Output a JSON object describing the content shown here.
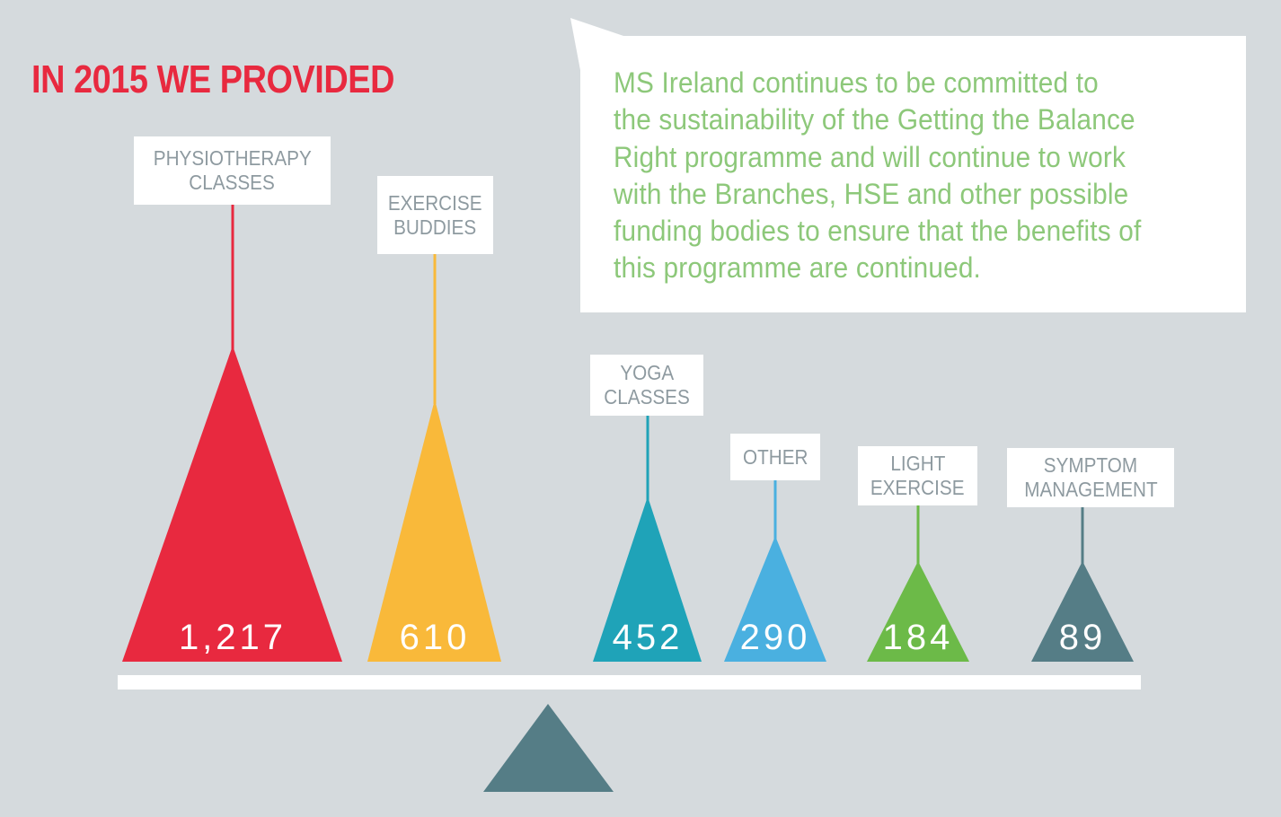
{
  "title": "IN 2015 WE PROVIDED",
  "statement": {
    "lines": [
      "MS Ireland continues to be committed to",
      "the sustainability of the Getting the Balance",
      "Right programme and will continue to work",
      "with the Branches, HSE and other possible",
      "funding bodies to ensure that the benefits of",
      "this programme are continued."
    ]
  },
  "chart_data": {
    "type": "bar",
    "title": "IN 2015 WE PROVIDED",
    "categories": [
      "PHYSIOTHERAPY CLASSES",
      "EXERCISE BUDDIES",
      "YOGA CLASSES",
      "OTHER",
      "LIGHT EXERCISE",
      "SYMPTOM MANAGEMENT"
    ],
    "label_lines": [
      [
        "PHYSIOTHERAPY",
        "CLASSES"
      ],
      [
        "EXERCISE",
        "BUDDIES"
      ],
      [
        "YOGA",
        "CLASSES"
      ],
      [
        "OTHER"
      ],
      [
        "LIGHT",
        "EXERCISE"
      ],
      [
        "SYMPTOM",
        "MANAGEMENT"
      ]
    ],
    "values": [
      1217,
      610,
      452,
      290,
      184,
      89
    ],
    "value_labels": [
      "1,217",
      "610",
      "452",
      "290",
      "184",
      "89"
    ],
    "colors": [
      "#e8293f",
      "#f9b93a",
      "#1fa3b8",
      "#4ab0e0",
      "#6cba48",
      "#557d86"
    ],
    "xlabel": "",
    "ylabel": ""
  },
  "colors": {
    "background": "#d5dadd",
    "title": "#e8293f",
    "statement": "#8dc87a",
    "beam": "#ffffff",
    "fulcrum": "#557d86"
  }
}
